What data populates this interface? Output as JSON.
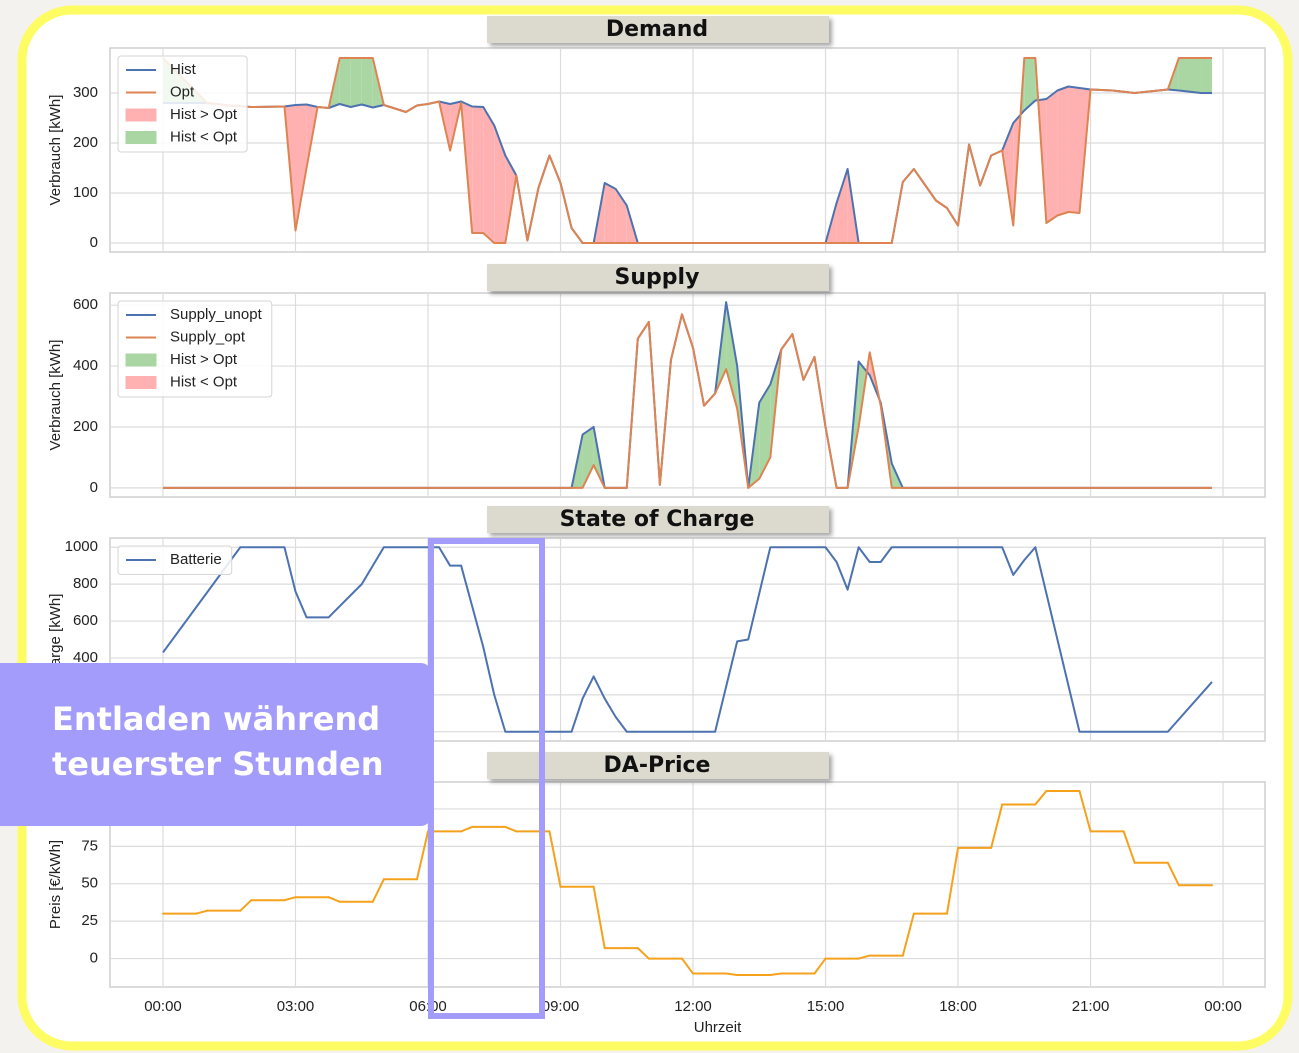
{
  "chart_data": [
    {
      "type": "line",
      "title": "Demand",
      "ylabel": "Verbrauch [kWh]",
      "x": [
        0,
        1,
        1.5,
        2,
        2.75,
        3,
        3.25,
        3.5,
        3.75,
        4,
        4.25,
        4.5,
        4.75,
        5,
        5.5,
        5.75,
        6,
        6.25,
        6.5,
        6.75,
        7,
        7.25,
        7.5,
        7.75,
        8,
        8.25,
        8.5,
        8.75,
        9,
        9.25,
        9.5,
        9.75,
        10,
        10.25,
        10.5,
        10.75,
        15,
        15.25,
        15.5,
        15.75,
        16.5,
        16.75,
        17,
        17.5,
        17.75,
        18,
        18.25,
        18.5,
        18.75,
        19,
        19.25,
        19.5,
        19.75,
        20,
        20.25,
        20.5,
        20.75,
        21,
        21.5,
        22,
        22.75,
        23,
        23.5,
        23.75
      ],
      "series": [
        {
          "name": "Hist",
          "color": "#4c72b0",
          "values": [
            280,
            280,
            275,
            272,
            273,
            276,
            277,
            272,
            270,
            278,
            272,
            277,
            271,
            276,
            262,
            275,
            278,
            283,
            278,
            283,
            273,
            272,
            235,
            175,
            135,
            5,
            110,
            175,
            120,
            30,
            0,
            0,
            120,
            108,
            75,
            0,
            0,
            80,
            148,
            0,
            0,
            122,
            148,
            85,
            70,
            35,
            197,
            115,
            175,
            185,
            240,
            265,
            285,
            288,
            305,
            313,
            310,
            307,
            305,
            300,
            307,
            305,
            300,
            300
          ]
        },
        {
          "name": "Opt",
          "color": "#dd8452",
          "values": [
            370,
            280,
            275,
            272,
            273,
            25,
            150,
            272,
            270,
            370,
            370,
            370,
            370,
            276,
            262,
            275,
            278,
            283,
            185,
            280,
            20,
            20,
            0,
            0,
            135,
            5,
            110,
            175,
            120,
            30,
            0,
            0,
            0,
            0,
            0,
            0,
            0,
            0,
            0,
            0,
            0,
            122,
            148,
            85,
            70,
            35,
            197,
            115,
            175,
            185,
            35,
            370,
            370,
            40,
            55,
            62,
            60,
            307,
            305,
            300,
            307,
            370,
            370,
            370
          ]
        }
      ],
      "fills": [
        {
          "name": "Hist > Opt",
          "color": "#ffb1b1"
        },
        {
          "name": "Hist < Opt",
          "color": "#a9d6a3"
        }
      ],
      "ylim": [
        -18,
        390
      ],
      "yticks": [
        0,
        100,
        200,
        300
      ],
      "grid": true,
      "legend": "upper left"
    },
    {
      "type": "line",
      "title": "Supply",
      "ylabel": "Verbrauch [kWh]",
      "x": [
        0,
        9.25,
        9.5,
        9.75,
        10,
        10.5,
        10.75,
        11,
        11.25,
        11.5,
        11.75,
        12,
        12.25,
        12.5,
        12.75,
        13,
        13.25,
        13.5,
        13.75,
        14,
        14.25,
        14.5,
        14.75,
        15,
        15.25,
        15.5,
        15.75,
        16,
        16.25,
        16.5,
        16.75,
        23.75
      ],
      "series": [
        {
          "name": "Supply_unopt",
          "color": "#4c72b0",
          "values": [
            0,
            0,
            175,
            200,
            0,
            0,
            490,
            545,
            10,
            420,
            570,
            460,
            270,
            310,
            610,
            400,
            0,
            280,
            340,
            455,
            505,
            355,
            430,
            200,
            0,
            0,
            415,
            370,
            280,
            80,
            0,
            0
          ]
        },
        {
          "name": "Supply_opt",
          "color": "#dd8452",
          "values": [
            0,
            0,
            0,
            75,
            0,
            0,
            490,
            545,
            10,
            420,
            570,
            460,
            270,
            310,
            390,
            260,
            0,
            30,
            100,
            455,
            505,
            355,
            430,
            200,
            0,
            0,
            200,
            445,
            270,
            0,
            0,
            0
          ]
        }
      ],
      "fills": [
        {
          "name": "Hist > Opt",
          "color": "#a9d6a3"
        },
        {
          "name": "Hist < Opt",
          "color": "#ffb1b1"
        }
      ],
      "ylim": [
        -30,
        640
      ],
      "yticks": [
        0,
        200,
        400,
        600
      ],
      "grid": true,
      "legend": "upper left"
    },
    {
      "type": "line",
      "title": "State of Charge",
      "ylabel": "Charge [kWh]",
      "x": [
        0,
        1.75,
        2.75,
        3,
        3.25,
        3.75,
        4.5,
        5,
        6.25,
        6.5,
        6.75,
        7,
        7.25,
        7.5,
        7.75,
        9.25,
        9.5,
        9.75,
        10,
        10.25,
        10.5,
        12.5,
        13,
        13.25,
        13.75,
        15,
        15.25,
        15.5,
        15.75,
        16,
        16.25,
        16.5,
        19,
        19.25,
        19.5,
        19.75,
        20.75,
        22.75,
        23.75
      ],
      "series": [
        {
          "name": "Batterie",
          "color": "#4c72b0",
          "values": [
            430,
            1000,
            1000,
            760,
            620,
            620,
            800,
            1000,
            1000,
            900,
            900,
            680,
            460,
            200,
            0,
            0,
            180,
            300,
            180,
            80,
            0,
            0,
            490,
            500,
            1000,
            1000,
            920,
            770,
            1000,
            920,
            920,
            1000,
            1000,
            850,
            930,
            1000,
            0,
            0,
            270
          ]
        }
      ],
      "ylim": [
        -50,
        1050
      ],
      "yticks": [
        0,
        200,
        400,
        600,
        800,
        1000
      ],
      "grid": true,
      "legend": "upper left"
    },
    {
      "type": "step",
      "title": "DA-Price",
      "ylabel": "Preis [€/kWh]",
      "xlabel": "Uhrzeit",
      "x": [
        0,
        1,
        2,
        3,
        4,
        5,
        6,
        7,
        8,
        9,
        10,
        11,
        12,
        13,
        14,
        15,
        16,
        17,
        18,
        19,
        20,
        21,
        22,
        23
      ],
      "series": [
        {
          "name": "DA-Price",
          "color": "#f5a11c",
          "values": [
            30,
            32,
            39,
            41,
            38,
            53,
            85,
            88,
            85,
            48,
            7,
            0,
            -10,
            -11,
            -10,
            0,
            2,
            30,
            74,
            103,
            112,
            85,
            64,
            49
          ]
        }
      ],
      "ylim": [
        -19,
        118
      ],
      "yticks": [
        0,
        25,
        50,
        75,
        100
      ],
      "grid": true,
      "xlim": [
        -1.2,
        24.95
      ],
      "xticks": [
        {
          "value": 0,
          "label": "00:00"
        },
        {
          "value": 3,
          "label": "03:00"
        },
        {
          "value": 6,
          "label": "06:00"
        },
        {
          "value": 9,
          "label": "09:00"
        },
        {
          "value": 12,
          "label": "12:00"
        },
        {
          "value": 15,
          "label": "15:00"
        },
        {
          "value": 18,
          "label": "18:00"
        },
        {
          "value": 21,
          "label": "21:00"
        },
        {
          "value": 24,
          "label": "00:00"
        }
      ]
    }
  ],
  "callout": {
    "lines": [
      "Entladen während",
      "teuerster Stunden"
    ]
  }
}
